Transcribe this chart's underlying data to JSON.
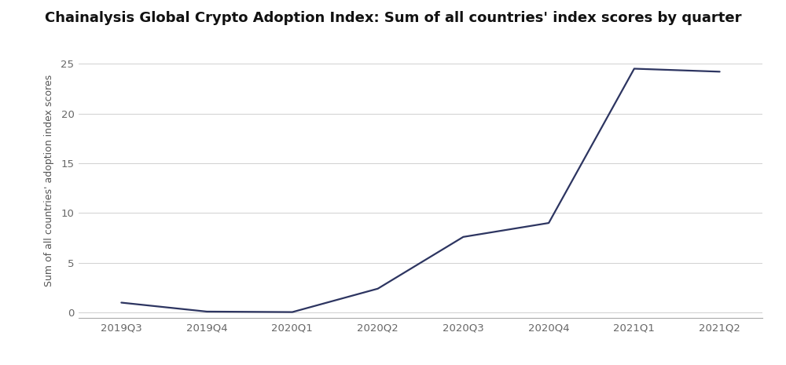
{
  "title": "Chainalysis Global Crypto Adoption Index: Sum of all countries' index scores by quarter",
  "ylabel": "Sum of all countries' adoption index scores",
  "x_labels": [
    "2019Q3",
    "2019Q4",
    "2020Q1",
    "2020Q2",
    "2020Q3",
    "2020Q4",
    "2021Q1",
    "2021Q2"
  ],
  "y_values": [
    1.0,
    0.1,
    0.05,
    2.4,
    7.6,
    9.0,
    24.5,
    24.2
  ],
  "line_color": "#2d3561",
  "line_width": 1.6,
  "ylim": [
    -0.5,
    27
  ],
  "yticks": [
    0,
    5,
    10,
    15,
    20,
    25
  ],
  "background_color": "#ffffff",
  "grid_color": "#d0d0d0",
  "title_fontsize": 13,
  "label_fontsize": 9,
  "tick_fontsize": 9.5
}
